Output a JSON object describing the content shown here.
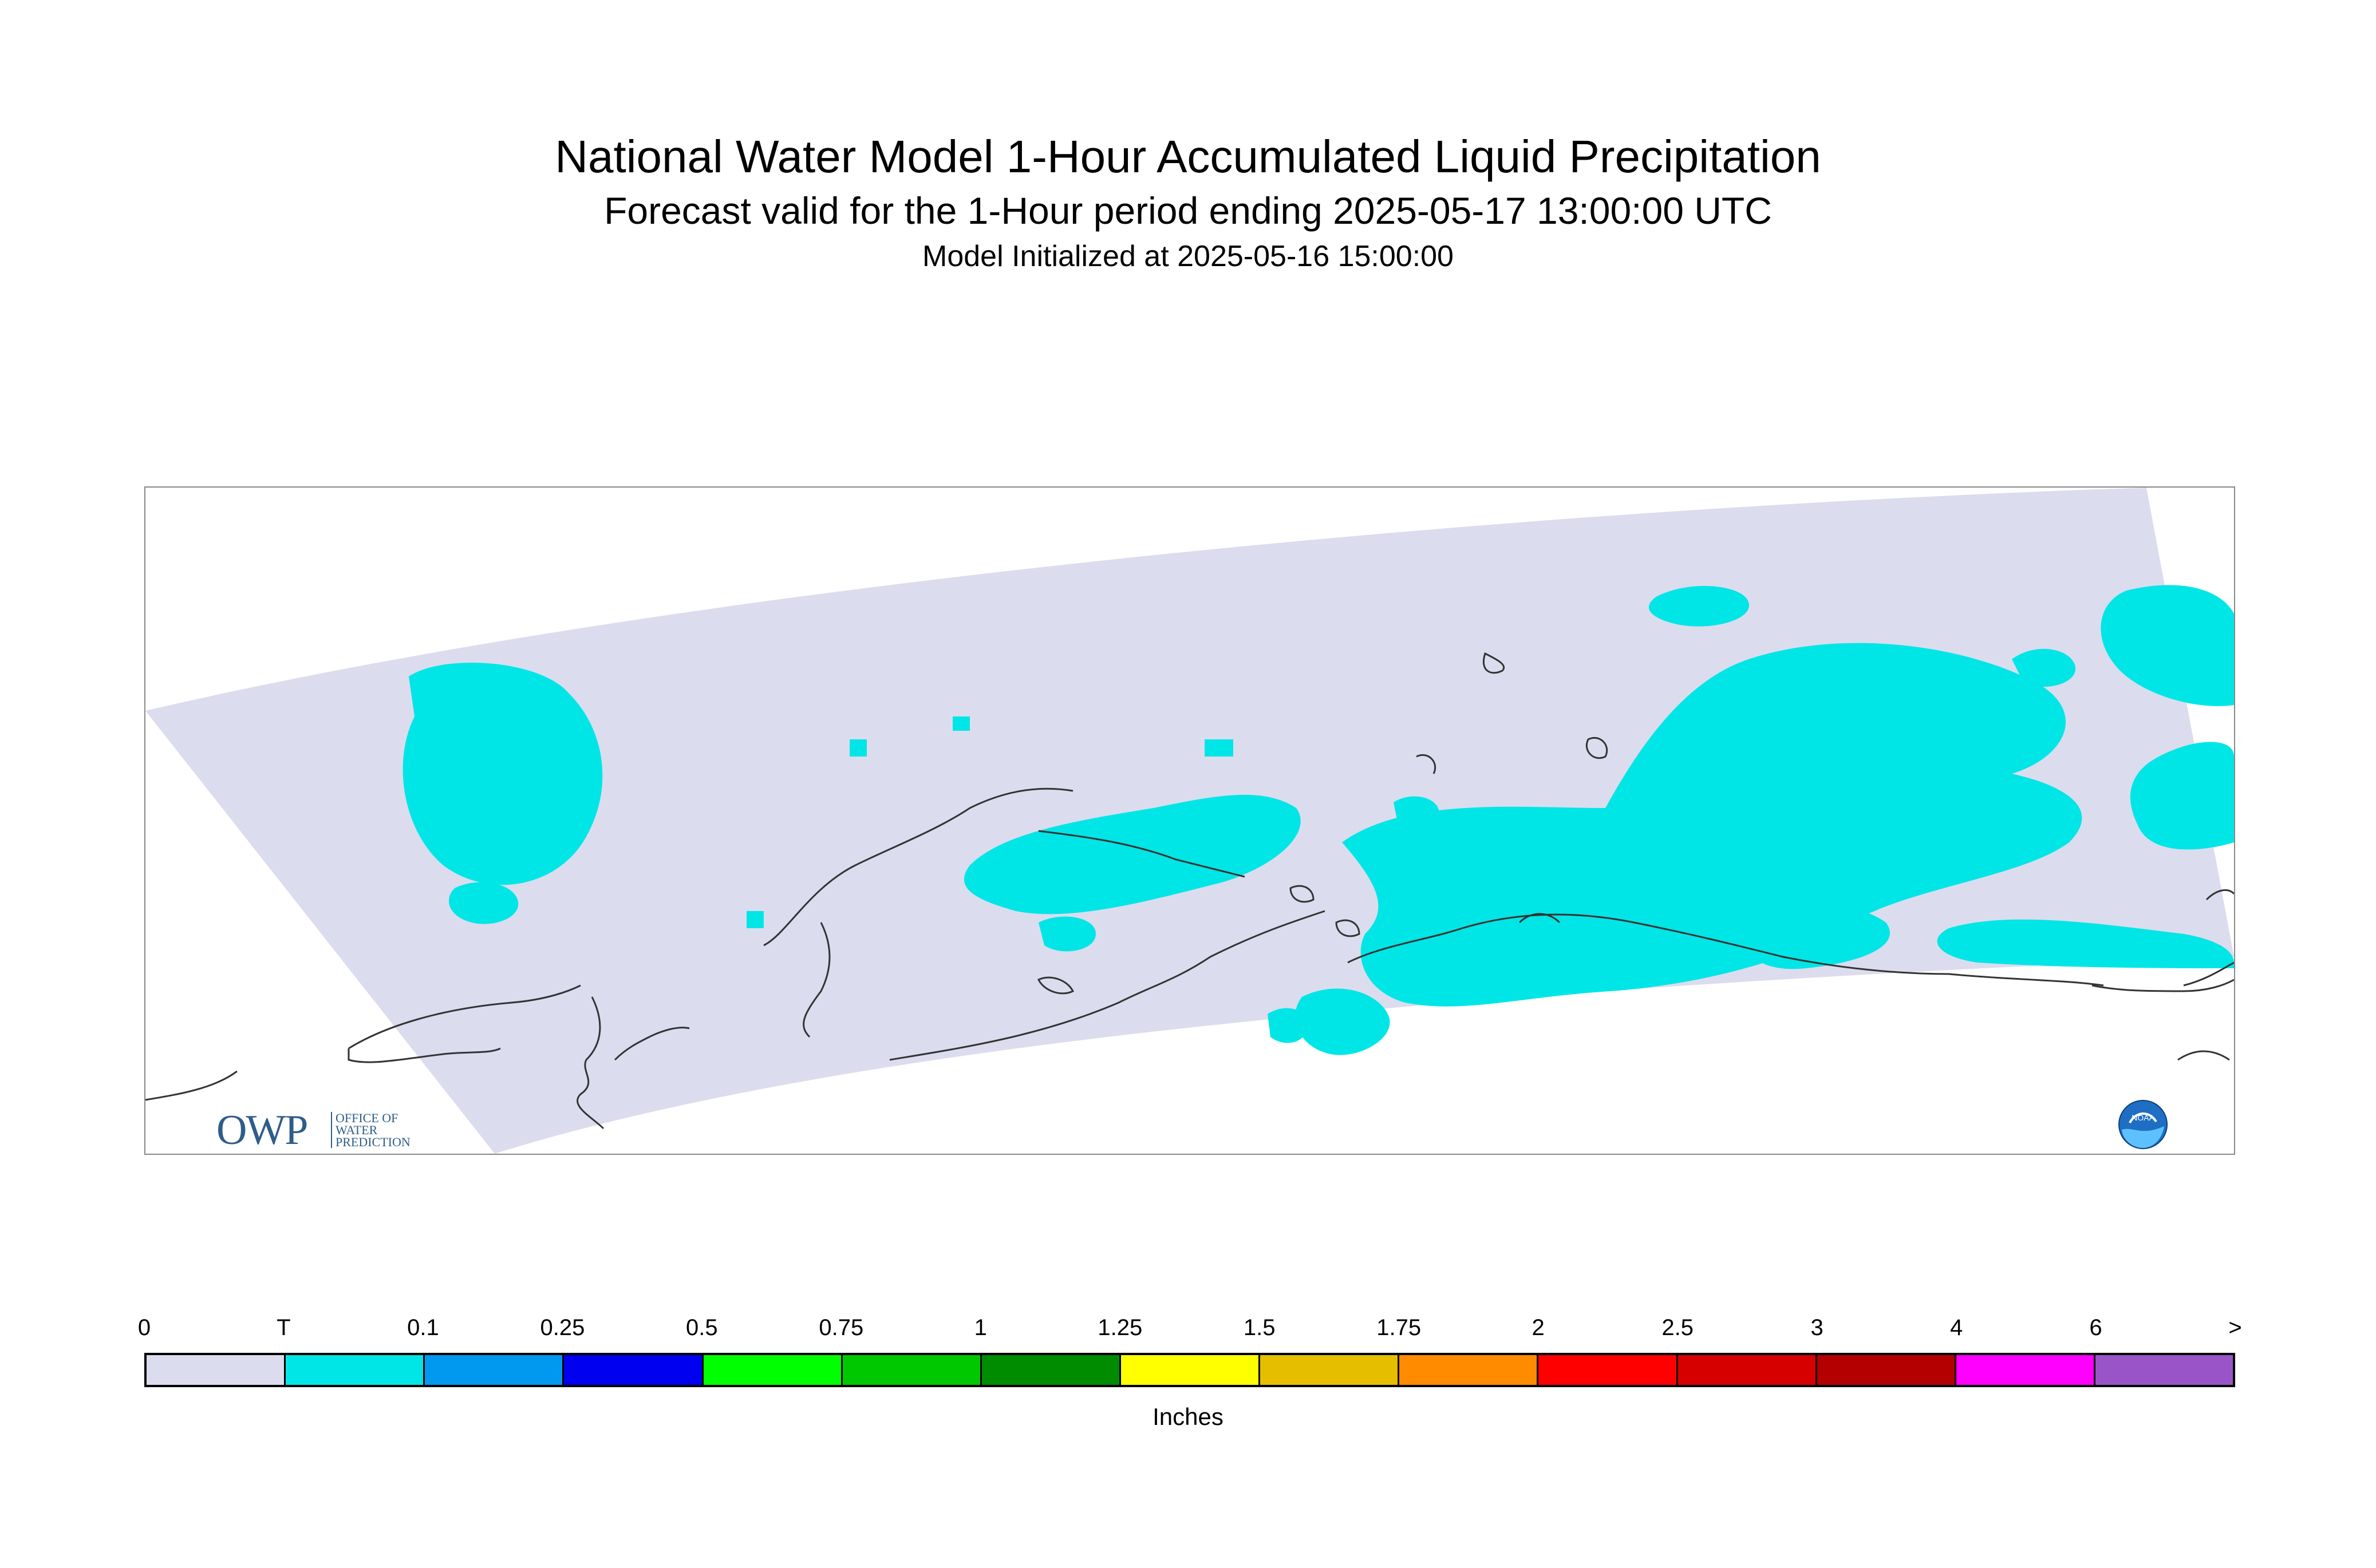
{
  "header": {
    "title": "National Water Model 1-Hour Accumulated Liquid Precipitation",
    "subtitle": "Forecast valid for the 1-Hour period ending 2025-05-17 13:00:00 UTC",
    "init": "Model Initialized at 2025-05-16 15:00:00"
  },
  "map": {
    "domain_color": "#dcdcef",
    "precip_color": "#00e6e6",
    "coast_color": "#333333"
  },
  "logos": {
    "owp_letters": "OWP",
    "owp_text": [
      "OFFICE OF",
      "WATER",
      "PREDICTION"
    ],
    "noaa_text": "NOAA"
  },
  "legend": {
    "ticks": [
      "0",
      "T",
      "0.1",
      "0.25",
      "0.5",
      "0.75",
      "1",
      "1.25",
      "1.5",
      "1.75",
      "2",
      "2.5",
      "3",
      "4",
      "6",
      ">"
    ],
    "colors": [
      "#dcdcef",
      "#00e6e6",
      "#0099f0",
      "#0000f0",
      "#00ff00",
      "#00c800",
      "#008c00",
      "#ffff00",
      "#e6be00",
      "#ff8c00",
      "#ff0000",
      "#d70000",
      "#b40000",
      "#ff00ff",
      "#9955c8"
    ],
    "units": "Inches"
  }
}
